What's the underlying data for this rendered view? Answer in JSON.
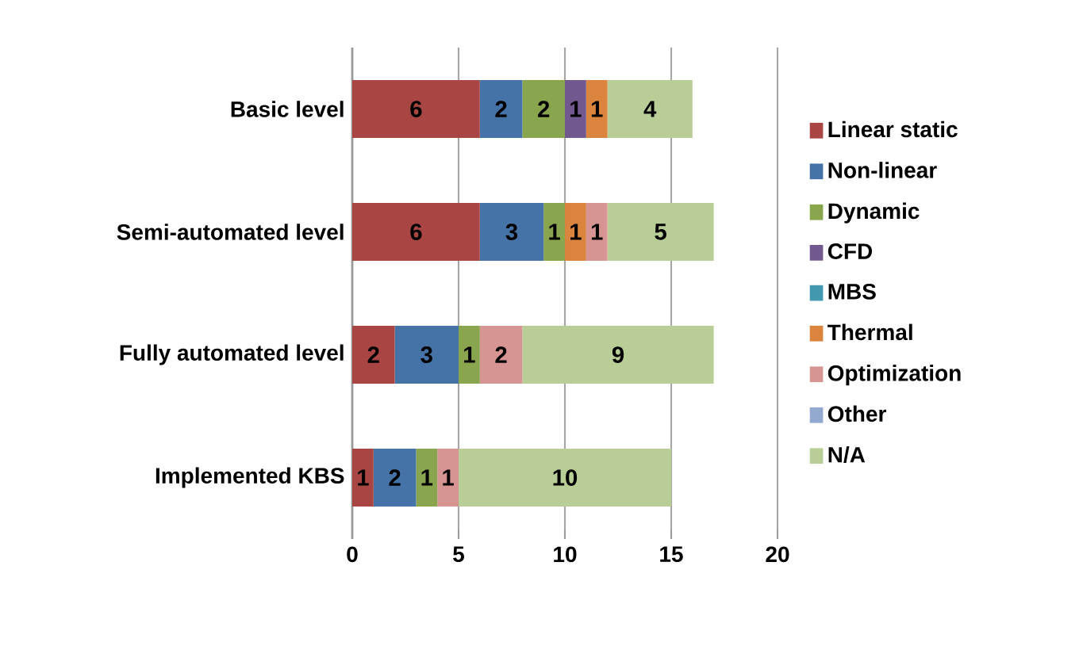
{
  "chart_data": {
    "type": "bar",
    "orientation": "horizontal",
    "stacked": true,
    "categories": [
      "Basic level",
      "Semi-automated level",
      "Fully automated level",
      "Implemented KBS"
    ],
    "series": [
      {
        "name": "Linear static",
        "color": "#a94643",
        "values": [
          6,
          6,
          2,
          1
        ],
        "value_labels": [
          "6",
          "6",
          "2",
          "1"
        ]
      },
      {
        "name": "Non-linear",
        "color": "#4572a7",
        "values": [
          2,
          3,
          3,
          2
        ],
        "value_labels": [
          "2",
          "3",
          "3",
          "2"
        ]
      },
      {
        "name": "Dynamic",
        "color": "#89a54e",
        "values": [
          2,
          1,
          1,
          1
        ],
        "value_labels": [
          "2",
          "1",
          "1",
          "1"
        ]
      },
      {
        "name": "CFD",
        "color": "#71588f",
        "values": [
          1,
          0,
          0,
          0
        ],
        "value_labels": [
          "1",
          null,
          null,
          null
        ]
      },
      {
        "name": "MBS",
        "color": "#4198af",
        "values": [
          0,
          0,
          0,
          0
        ],
        "value_labels": [
          null,
          null,
          null,
          null
        ]
      },
      {
        "name": "Thermal",
        "color": "#db843d",
        "values": [
          1,
          1,
          0,
          0
        ],
        "value_labels": [
          "1",
          "1",
          null,
          null
        ]
      },
      {
        "name": "Optimization",
        "color": "#d69593",
        "values": [
          0,
          1,
          2,
          1
        ],
        "value_labels": [
          null,
          "1",
          "2",
          "1"
        ]
      },
      {
        "name": "Other",
        "color": "#93a9cf",
        "values": [
          0,
          0,
          0,
          0
        ],
        "value_labels": [
          null,
          null,
          null,
          null
        ]
      },
      {
        "name": "N/A",
        "color": "#b9cd96",
        "values": [
          4,
          5,
          9,
          10
        ],
        "value_labels": [
          "4",
          "5",
          "9",
          "10"
        ]
      }
    ],
    "xlim": [
      0,
      20
    ],
    "xticks": [
      0,
      5,
      10,
      15,
      20
    ],
    "grid": "x",
    "legend": "right"
  }
}
